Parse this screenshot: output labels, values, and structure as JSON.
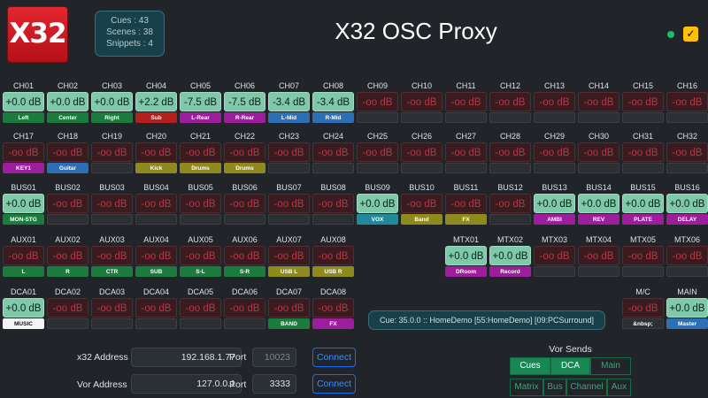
{
  "logo": {
    "text": "X32"
  },
  "stats": {
    "cues": "Cues : 43",
    "scenes": "Scenes : 38",
    "snippets": "Snippets : 4"
  },
  "app": {
    "title": "X32 OSC Proxy"
  },
  "status": {
    "ok_color": "#1fbd6a",
    "checkbox": "✓"
  },
  "label_colors": {
    "g": "#1b7c3d",
    "r": "#b32020",
    "m": "#9c1e9c",
    "b": "#2d6fb5",
    "c": "#1f8a9a",
    "y": "#8f8a1e",
    "w": "#f5f5f5",
    "k": "#2c3034"
  },
  "rows": [
    [
      {
        "n": "CH01",
        "v": "+0.0 dB",
        "on": 1,
        "l": "Left",
        "c": "g"
      },
      {
        "n": "CH02",
        "v": "+0.0 dB",
        "on": 1,
        "l": "Center",
        "c": "g"
      },
      {
        "n": "CH03",
        "v": "+0.0 dB",
        "on": 1,
        "l": "Right",
        "c": "g"
      },
      {
        "n": "CH04",
        "v": "+2.2 dB",
        "on": 1,
        "l": "Sub",
        "c": "r"
      },
      {
        "n": "CH05",
        "v": "-7.5 dB",
        "on": 1,
        "l": "L-Rear",
        "c": "m"
      },
      {
        "n": "CH06",
        "v": "-7.5 dB",
        "on": 1,
        "l": "R-Rear",
        "c": "m"
      },
      {
        "n": "CH07",
        "v": "-3.4 dB",
        "on": 1,
        "l": "L-Mid",
        "c": "b"
      },
      {
        "n": "CH08",
        "v": "-3.4 dB",
        "on": 1,
        "l": "R-Mid",
        "c": "b"
      },
      {
        "n": "CH09",
        "v": "-oo dB",
        "on": 0,
        "l": "",
        "c": "k"
      },
      {
        "n": "CH10",
        "v": "-oo dB",
        "on": 0,
        "l": "",
        "c": "k"
      },
      {
        "n": "CH11",
        "v": "-oo dB",
        "on": 0,
        "l": "",
        "c": "k"
      },
      {
        "n": "CH12",
        "v": "-oo dB",
        "on": 0,
        "l": "",
        "c": "k"
      },
      {
        "n": "CH13",
        "v": "-oo dB",
        "on": 0,
        "l": "",
        "c": "k"
      },
      {
        "n": "CH14",
        "v": "-oo dB",
        "on": 0,
        "l": "",
        "c": "k"
      },
      {
        "n": "CH15",
        "v": "-oo dB",
        "on": 0,
        "l": "",
        "c": "k"
      },
      {
        "n": "CH16",
        "v": "-oo dB",
        "on": 0,
        "l": "",
        "c": "k"
      }
    ],
    [
      {
        "n": "CH17",
        "v": "-oo dB",
        "on": 0,
        "l": "KEY1",
        "c": "m"
      },
      {
        "n": "CH18",
        "v": "-oo dB",
        "on": 0,
        "l": "Guitar",
        "c": "b"
      },
      {
        "n": "CH19",
        "v": "-oo dB",
        "on": 0,
        "l": "",
        "c": "k"
      },
      {
        "n": "CH20",
        "v": "-oo dB",
        "on": 0,
        "l": "Kick",
        "c": "y"
      },
      {
        "n": "CH21",
        "v": "-oo dB",
        "on": 0,
        "l": "Drums",
        "c": "y"
      },
      {
        "n": "CH22",
        "v": "-oo dB",
        "on": 0,
        "l": "Drums",
        "c": "y"
      },
      {
        "n": "CH23",
        "v": "-oo dB",
        "on": 0,
        "l": "",
        "c": "k"
      },
      {
        "n": "CH24",
        "v": "-oo dB",
        "on": 0,
        "l": "",
        "c": "k"
      },
      {
        "n": "CH25",
        "v": "-oo dB",
        "on": 0,
        "l": "",
        "c": "k"
      },
      {
        "n": "CH26",
        "v": "-oo dB",
        "on": 0,
        "l": "",
        "c": "k"
      },
      {
        "n": "CH27",
        "v": "-oo dB",
        "on": 0,
        "l": "",
        "c": "k"
      },
      {
        "n": "CH28",
        "v": "-oo dB",
        "on": 0,
        "l": "",
        "c": "k"
      },
      {
        "n": "CH29",
        "v": "-oo dB",
        "on": 0,
        "l": "",
        "c": "k"
      },
      {
        "n": "CH30",
        "v": "-oo dB",
        "on": 0,
        "l": "",
        "c": "k"
      },
      {
        "n": "CH31",
        "v": "-oo dB",
        "on": 0,
        "l": "",
        "c": "k"
      },
      {
        "n": "CH32",
        "v": "-oo dB",
        "on": 0,
        "l": "",
        "c": "k"
      }
    ],
    [
      {
        "n": "BUS01",
        "v": "+0.0 dB",
        "on": 1,
        "l": "MON-STG",
        "c": "g"
      },
      {
        "n": "BUS02",
        "v": "-oo dB",
        "on": 0,
        "l": "",
        "c": "k"
      },
      {
        "n": "BUS03",
        "v": "-oo dB",
        "on": 0,
        "l": "",
        "c": "k"
      },
      {
        "n": "BUS04",
        "v": "-oo dB",
        "on": 0,
        "l": "",
        "c": "k"
      },
      {
        "n": "BUS05",
        "v": "-oo dB",
        "on": 0,
        "l": "",
        "c": "k"
      },
      {
        "n": "BUS06",
        "v": "-oo dB",
        "on": 0,
        "l": "",
        "c": "k"
      },
      {
        "n": "BUS07",
        "v": "-oo dB",
        "on": 0,
        "l": "",
        "c": "k"
      },
      {
        "n": "BUS08",
        "v": "-oo dB",
        "on": 0,
        "l": "",
        "c": "k"
      },
      {
        "n": "BUS09",
        "v": "+0.0 dB",
        "on": 1,
        "l": "VOX",
        "c": "c"
      },
      {
        "n": "BUS10",
        "v": "-oo dB",
        "on": 0,
        "l": "Band",
        "c": "y"
      },
      {
        "n": "BUS11",
        "v": "-oo dB",
        "on": 0,
        "l": "FX",
        "c": "y"
      },
      {
        "n": "BUS12",
        "v": "-oo dB",
        "on": 0,
        "l": "",
        "c": "k"
      },
      {
        "n": "BUS13",
        "v": "+0.0 dB",
        "on": 1,
        "l": "AMBI",
        "c": "m"
      },
      {
        "n": "BUS14",
        "v": "+0.0 dB",
        "on": 1,
        "l": "REV",
        "c": "m"
      },
      {
        "n": "BUS15",
        "v": "+0.0 dB",
        "on": 1,
        "l": "PLATE",
        "c": "m"
      },
      {
        "n": "BUS16",
        "v": "+0.0 dB",
        "on": 1,
        "l": "DELAY",
        "c": "m"
      }
    ],
    [
      {
        "n": "AUX01",
        "v": "-oo dB",
        "on": 0,
        "l": "L",
        "c": "g"
      },
      {
        "n": "AUX02",
        "v": "-oo dB",
        "on": 0,
        "l": "R",
        "c": "g"
      },
      {
        "n": "AUX03",
        "v": "-oo dB",
        "on": 0,
        "l": "CTR",
        "c": "g"
      },
      {
        "n": "AUX04",
        "v": "-oo dB",
        "on": 0,
        "l": "SUB",
        "c": "g"
      },
      {
        "n": "AUX05",
        "v": "-oo dB",
        "on": 0,
        "l": "S-L",
        "c": "g"
      },
      {
        "n": "AUX06",
        "v": "-oo dB",
        "on": 0,
        "l": "S-R",
        "c": "g"
      },
      {
        "n": "AUX07",
        "v": "-oo dB",
        "on": 0,
        "l": "USB L",
        "c": "y"
      },
      {
        "n": "AUX08",
        "v": "-oo dB",
        "on": 0,
        "l": "USB R",
        "c": "y"
      },
      null,
      null,
      {
        "n": "MTX01",
        "v": "+0.0 dB",
        "on": 1,
        "l": "DRoom",
        "c": "m"
      },
      {
        "n": "MTX02",
        "v": "+0.0 dB",
        "on": 1,
        "l": "Record",
        "c": "m"
      },
      {
        "n": "MTX03",
        "v": "-oo dB",
        "on": 0,
        "l": "",
        "c": "k"
      },
      {
        "n": "MTX04",
        "v": "-oo dB",
        "on": 0,
        "l": "",
        "c": "k"
      },
      {
        "n": "MTX05",
        "v": "-oo dB",
        "on": 0,
        "l": "",
        "c": "k"
      },
      {
        "n": "MTX06",
        "v": "-oo dB",
        "on": 0,
        "l": "",
        "c": "k"
      }
    ],
    [
      {
        "n": "DCA01",
        "v": "+0.0 dB",
        "on": 1,
        "l": "MUSIC",
        "c": "w"
      },
      {
        "n": "DCA02",
        "v": "-oo dB",
        "on": 0,
        "l": "",
        "c": "k"
      },
      {
        "n": "DCA03",
        "v": "-oo dB",
        "on": 0,
        "l": "",
        "c": "k"
      },
      {
        "n": "DCA04",
        "v": "-oo dB",
        "on": 0,
        "l": "",
        "c": "k"
      },
      {
        "n": "DCA05",
        "v": "-oo dB",
        "on": 0,
        "l": "",
        "c": "k"
      },
      {
        "n": "DCA06",
        "v": "-oo dB",
        "on": 0,
        "l": "",
        "c": "k"
      },
      {
        "n": "DCA07",
        "v": "-oo dB",
        "on": 0,
        "l": "BAND",
        "c": "g"
      },
      {
        "n": "DCA08",
        "v": "-oo dB",
        "on": 0,
        "l": "FX",
        "c": "m"
      },
      null,
      null,
      null,
      null,
      null,
      null,
      {
        "n": "M/C",
        "v": "-oo dB",
        "on": 0,
        "l": "&nbsp;",
        "c": "k"
      },
      {
        "n": "MAIN",
        "v": "+0.0 dB",
        "on": 1,
        "l": "Master",
        "c": "b"
      }
    ]
  ],
  "cue": {
    "text": "Cue: 35.0.0 :: HomeDemo [55:HomeDemo] [09:PCSurround]"
  },
  "network": {
    "x32_label": "x32 Address",
    "x32_ip": "192.168.1.77",
    "x32_port_label": "Port",
    "x32_port": "10023",
    "vor_label": "Vor Address",
    "vor_ip": "127.0.0.1",
    "vor_port_label": "Port",
    "vor_port": "3333",
    "connect_label": "Connect"
  },
  "vor_sends": {
    "title": "Vor Sends",
    "row1": [
      "Cues",
      "DCA",
      "Main"
    ],
    "row2": [
      "Matrix",
      "Bus",
      "Channel",
      "Aux"
    ]
  }
}
